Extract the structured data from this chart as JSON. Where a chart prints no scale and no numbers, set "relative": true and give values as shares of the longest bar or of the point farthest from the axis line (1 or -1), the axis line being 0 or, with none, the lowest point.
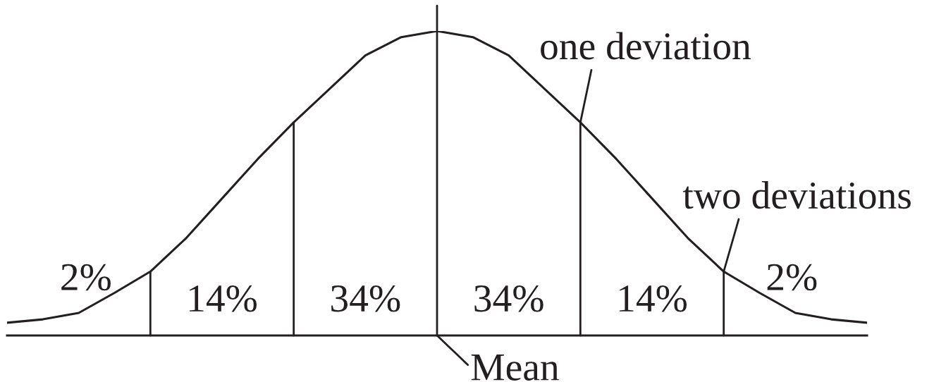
{
  "chart_data": {
    "type": "line",
    "relative": true,
    "tick_labels": false,
    "categories": [
      null,
      null,
      null,
      null,
      null,
      null,
      null,
      null,
      null,
      null,
      null,
      null,
      null,
      null,
      null,
      null,
      null,
      null,
      null,
      null,
      null,
      null,
      null,
      null,
      null
    ],
    "series": [
      {
        "color": "#231f20",
        "values": [
          0.042,
          0.053,
          0.074,
          0.14,
          0.21,
          0.32,
          0.45,
          0.58,
          0.7,
          0.81,
          0.92,
          0.98,
          1,
          0.98,
          0.92,
          0.81,
          0.7,
          0.58,
          0.45,
          0.32,
          0.21,
          0.14,
          0.074,
          0.053,
          0.042
        ]
      }
    ],
    "annotations": [
      "2%",
      "14%",
      "34%",
      "34%",
      "14%",
      "2%",
      "one deviation",
      "two deviations",
      "Mean"
    ]
  }
}
